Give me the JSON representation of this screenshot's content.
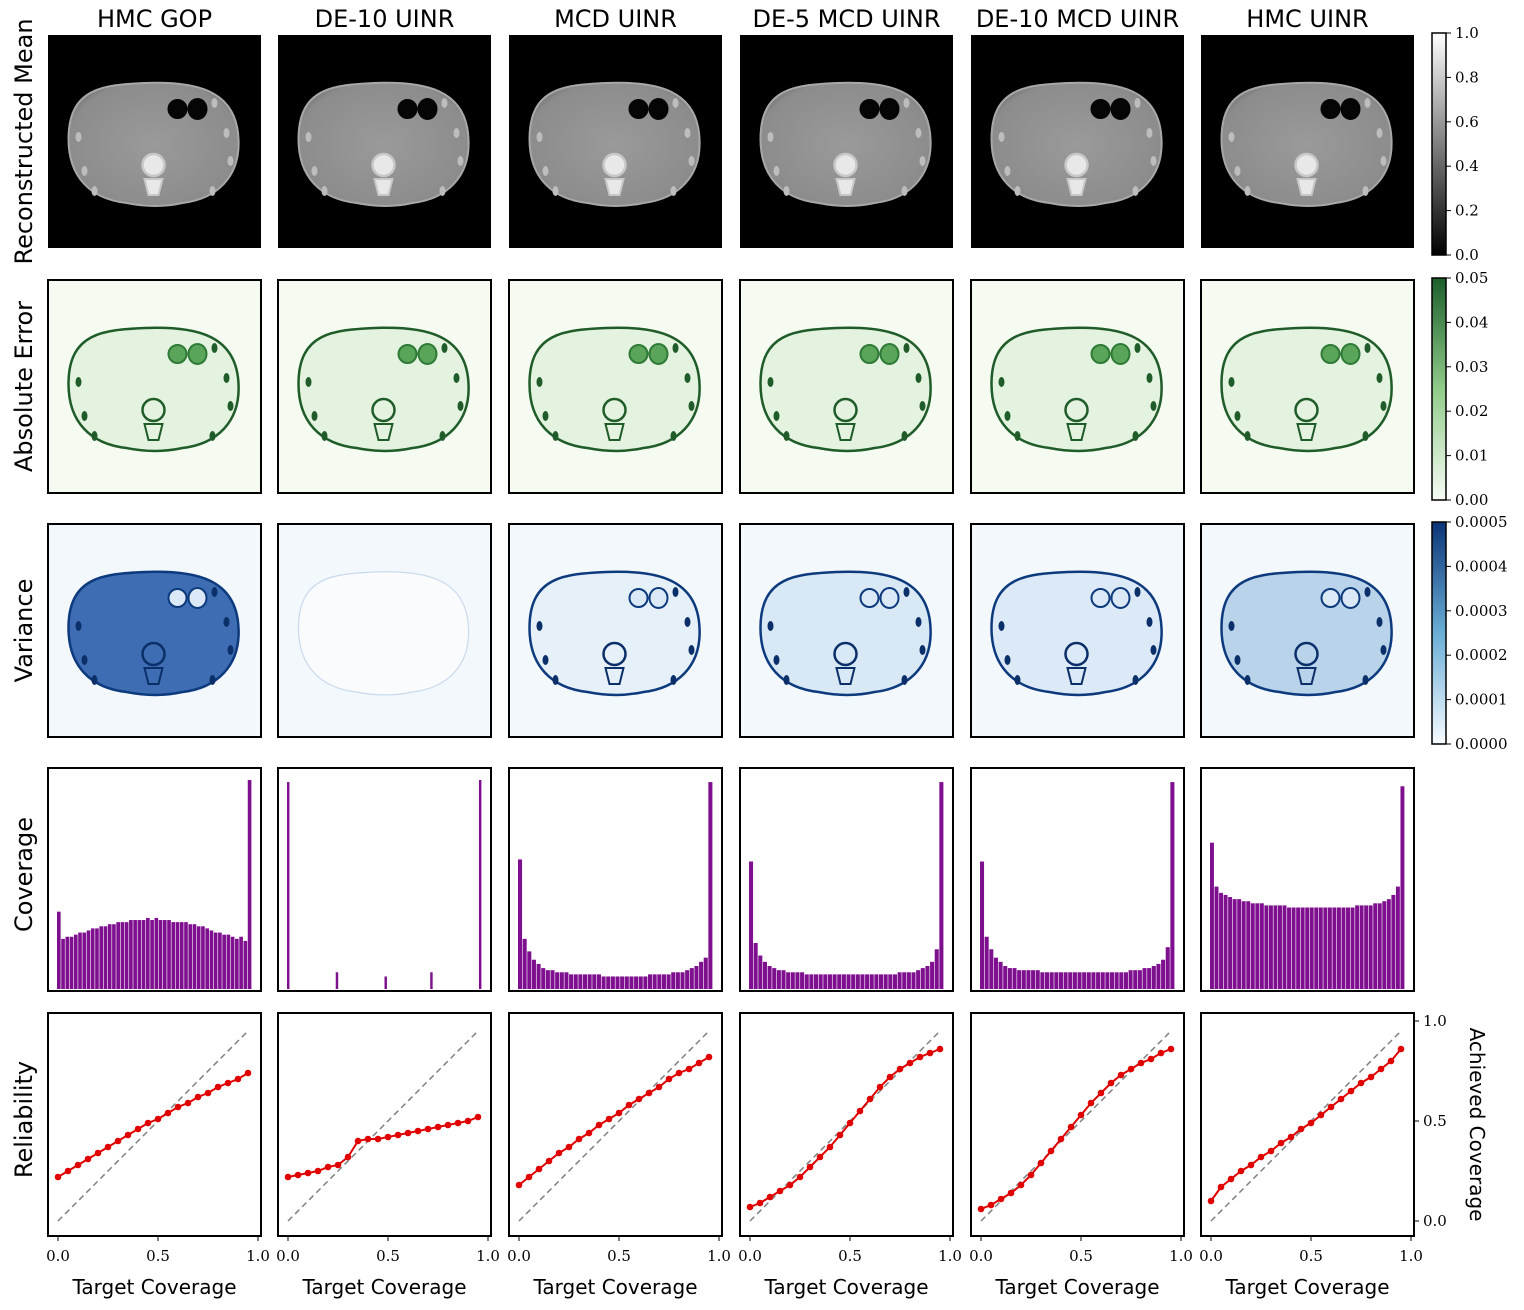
{
  "columns": [
    "HMC GOP",
    "DE-10 UINR",
    "MCD UINR",
    "DE-5 MCD UINR",
    "DE-10 MCD UINR",
    "HMC UINR"
  ],
  "rows": [
    "Reconstructed Mean",
    "Absolute Error",
    "Variance",
    "Coverage",
    "Reliability"
  ],
  "colorbars": {
    "mean": {
      "ticks": [
        "1.0",
        "0.8",
        "0.6",
        "0.4",
        "0.2",
        "0.0"
      ],
      "top": "#ffffff",
      "bottom": "#000000"
    },
    "error": {
      "ticks": [
        "0.05",
        "0.04",
        "0.03",
        "0.02",
        "0.01",
        "0.00"
      ],
      "top": "#1c5e2b",
      "mid": "#90cc8a",
      "bottom": "#f7fcf5"
    },
    "variance": {
      "ticks": [
        "0.0005",
        "0.0004",
        "0.0003",
        "0.0002",
        "0.0001",
        "0.0000"
      ],
      "top": "#0b3476",
      "mid": "#6aaed6",
      "bottom": "#f7fbff"
    }
  },
  "colors": {
    "histogram": "#7e0f8e",
    "reliability_line": "#e00000",
    "diagonal": "#808080"
  },
  "chart_data": [
    {
      "type": "bar",
      "title": "Coverage",
      "series": [
        {
          "name": "HMC GOP",
          "values": [
            0.37,
            0.24,
            0.25,
            0.25,
            0.26,
            0.27,
            0.27,
            0.28,
            0.29,
            0.29,
            0.3,
            0.3,
            0.31,
            0.31,
            0.32,
            0.32,
            0.32,
            0.33,
            0.33,
            0.33,
            0.33,
            0.34,
            0.33,
            0.34,
            0.33,
            0.33,
            0.33,
            0.32,
            0.32,
            0.32,
            0.32,
            0.31,
            0.31,
            0.3,
            0.3,
            0.29,
            0.28,
            0.27,
            0.27,
            0.26,
            0.26,
            0.25,
            0.24,
            0.25,
            0.23,
            1.0
          ]
        },
        {
          "name": "DE-10 UINR",
          "values": [
            0.99,
            0,
            0,
            0,
            0,
            0,
            0,
            0,
            0,
            0,
            0,
            0,
            0,
            0,
            0,
            0,
            0.08,
            0,
            0,
            0,
            0,
            0,
            0,
            0,
            0,
            0,
            0,
            0,
            0,
            0,
            0,
            0,
            0.06,
            0,
            0,
            0,
            0,
            0,
            0,
            0,
            0,
            0,
            0,
            0,
            0,
            0,
            0,
            0.08,
            0,
            0,
            0,
            0,
            0,
            0,
            0,
            0,
            0,
            0,
            0,
            0,
            0,
            0,
            0,
            1.0
          ]
        },
        {
          "name": "MCD UINR",
          "values": [
            0.62,
            0.24,
            0.18,
            0.14,
            0.12,
            0.1,
            0.09,
            0.09,
            0.08,
            0.08,
            0.08,
            0.07,
            0.07,
            0.07,
            0.07,
            0.07,
            0.07,
            0.07,
            0.06,
            0.06,
            0.06,
            0.06,
            0.06,
            0.06,
            0.06,
            0.06,
            0.06,
            0.06,
            0.07,
            0.07,
            0.07,
            0.07,
            0.07,
            0.08,
            0.08,
            0.08,
            0.09,
            0.1,
            0.11,
            0.13,
            0.15,
            0.99
          ]
        },
        {
          "name": "DE-5 MCD UINR",
          "values": [
            0.61,
            0.22,
            0.16,
            0.13,
            0.11,
            0.1,
            0.09,
            0.09,
            0.08,
            0.08,
            0.08,
            0.08,
            0.07,
            0.07,
            0.07,
            0.07,
            0.07,
            0.07,
            0.07,
            0.07,
            0.07,
            0.07,
            0.07,
            0.07,
            0.07,
            0.07,
            0.07,
            0.07,
            0.07,
            0.07,
            0.07,
            0.07,
            0.08,
            0.08,
            0.08,
            0.08,
            0.09,
            0.1,
            0.11,
            0.13,
            0.19,
            0.99
          ]
        },
        {
          "name": "DE-10 MCD UINR",
          "values": [
            0.61,
            0.25,
            0.19,
            0.15,
            0.13,
            0.11,
            0.1,
            0.1,
            0.09,
            0.09,
            0.09,
            0.09,
            0.09,
            0.08,
            0.08,
            0.08,
            0.08,
            0.08,
            0.08,
            0.08,
            0.08,
            0.08,
            0.08,
            0.08,
            0.08,
            0.08,
            0.08,
            0.08,
            0.08,
            0.08,
            0.08,
            0.08,
            0.09,
            0.09,
            0.09,
            0.1,
            0.1,
            0.11,
            0.12,
            0.14,
            0.2,
            0.99
          ]
        },
        {
          "name": "HMC UINR",
          "values": [
            0.7,
            0.49,
            0.46,
            0.45,
            0.44,
            0.43,
            0.43,
            0.42,
            0.42,
            0.41,
            0.41,
            0.41,
            0.4,
            0.4,
            0.4,
            0.4,
            0.4,
            0.39,
            0.39,
            0.39,
            0.39,
            0.39,
            0.39,
            0.39,
            0.39,
            0.39,
            0.39,
            0.39,
            0.39,
            0.39,
            0.39,
            0.39,
            0.4,
            0.4,
            0.4,
            0.4,
            0.41,
            0.41,
            0.42,
            0.43,
            0.45,
            0.49,
            0.97
          ]
        }
      ]
    },
    {
      "type": "line",
      "title": "Reliability",
      "xlabel": "Target Coverage",
      "ylabel": "Achieved Coverage",
      "xlim": [
        0,
        1
      ],
      "ylim": [
        0,
        1
      ],
      "xticks": [
        "0.0",
        "0.5",
        "1.0"
      ],
      "yticks": [
        "0.0",
        "0.5",
        "1.0"
      ],
      "x": [
        0.0,
        0.05,
        0.1,
        0.15,
        0.2,
        0.25,
        0.3,
        0.35,
        0.4,
        0.45,
        0.5,
        0.55,
        0.6,
        0.65,
        0.7,
        0.75,
        0.8,
        0.85,
        0.9,
        0.95
      ],
      "series": [
        {
          "name": "HMC GOP",
          "values": [
            0.22,
            0.25,
            0.28,
            0.31,
            0.34,
            0.37,
            0.4,
            0.43,
            0.46,
            0.49,
            0.51,
            0.54,
            0.57,
            0.59,
            0.62,
            0.64,
            0.67,
            0.69,
            0.71,
            0.74
          ]
        },
        {
          "name": "DE-10 UINR",
          "values": [
            0.22,
            0.23,
            0.24,
            0.25,
            0.27,
            0.28,
            0.32,
            0.4,
            0.41,
            0.41,
            0.42,
            0.43,
            0.44,
            0.45,
            0.46,
            0.47,
            0.48,
            0.49,
            0.5,
            0.52
          ]
        },
        {
          "name": "MCD UINR",
          "values": [
            0.18,
            0.22,
            0.26,
            0.3,
            0.34,
            0.37,
            0.41,
            0.44,
            0.48,
            0.51,
            0.54,
            0.58,
            0.61,
            0.64,
            0.67,
            0.71,
            0.74,
            0.76,
            0.79,
            0.82
          ]
        },
        {
          "name": "DE-5 MCD UINR",
          "values": [
            0.07,
            0.09,
            0.12,
            0.15,
            0.18,
            0.22,
            0.27,
            0.32,
            0.37,
            0.43,
            0.49,
            0.55,
            0.61,
            0.67,
            0.72,
            0.76,
            0.79,
            0.82,
            0.84,
            0.86
          ]
        },
        {
          "name": "DE-10 MCD UINR",
          "values": [
            0.06,
            0.08,
            0.11,
            0.14,
            0.18,
            0.23,
            0.29,
            0.35,
            0.41,
            0.47,
            0.53,
            0.59,
            0.64,
            0.69,
            0.73,
            0.76,
            0.79,
            0.81,
            0.84,
            0.86
          ]
        },
        {
          "name": "HMC UINR",
          "values": [
            0.1,
            0.17,
            0.21,
            0.25,
            0.28,
            0.32,
            0.35,
            0.39,
            0.42,
            0.46,
            0.49,
            0.53,
            0.57,
            0.61,
            0.65,
            0.69,
            0.72,
            0.76,
            0.8,
            0.86
          ]
        }
      ]
    }
  ]
}
